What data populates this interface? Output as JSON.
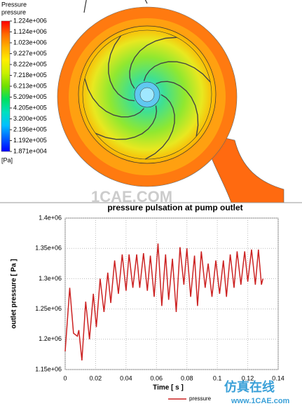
{
  "chart_data": [
    {
      "type": "contour",
      "title": "Pressure",
      "subtitle": "pressure",
      "unit": "[Pa]",
      "ylim": [
        18710,
        1224000
      ],
      "yticks": [
        {
          "value": 1224000,
          "label": "1.224e+006"
        },
        {
          "value": 1124000,
          "label": "1.124e+006"
        },
        {
          "value": 1023000,
          "label": "1.023e+006"
        },
        {
          "value": 922700,
          "label": "9.227e+005"
        },
        {
          "value": 822200,
          "label": "8.222e+005"
        },
        {
          "value": 721800,
          "label": "7.218e+005"
        },
        {
          "value": 621300,
          "label": "6.213e+005"
        },
        {
          "value": 520900,
          "label": "5.209e+005"
        },
        {
          "value": 420500,
          "label": "4.205e+005"
        },
        {
          "value": 320000,
          "label": "3.200e+005"
        },
        {
          "value": 219600,
          "label": "2.196e+005"
        },
        {
          "value": 119200,
          "label": "1.192e+005"
        },
        {
          "value": 18710,
          "label": "1.871e+004"
        }
      ],
      "colors": [
        "#ff0000",
        "#ff6a00",
        "#ffb300",
        "#ffee00",
        "#c8f000",
        "#6fe000",
        "#00e060",
        "#00e0c0",
        "#00c0ff",
        "#0060ff",
        "#0000ff"
      ],
      "watermark": "1CAE.COM"
    },
    {
      "type": "line",
      "title": "pressure pulsation at pump outlet",
      "xlabel": "Time [ s ]",
      "ylabel": "outlet pressure [ Pa ]",
      "xlim": [
        0,
        0.14
      ],
      "xticks": [
        0,
        0.02,
        0.04,
        0.06,
        0.08,
        0.1,
        0.12,
        0.14
      ],
      "ylim": [
        1150000,
        1400000
      ],
      "yticks": [
        {
          "value": 1150000,
          "label": "1.15e+06"
        },
        {
          "value": 1200000,
          "label": "1.2e+06"
        },
        {
          "value": 1250000,
          "label": "1.25e+06"
        },
        {
          "value": 1300000,
          "label": "1.3e+06"
        },
        {
          "value": 1350000,
          "label": "1.35e+06"
        },
        {
          "value": 1400000,
          "label": "1.4e+06"
        }
      ],
      "grid": true,
      "x": [
        0,
        0.003,
        0.0055,
        0.008,
        0.009,
        0.011,
        0.0135,
        0.016,
        0.0185,
        0.0205,
        0.023,
        0.0255,
        0.028,
        0.03,
        0.0325,
        0.035,
        0.0375,
        0.04,
        0.042,
        0.0445,
        0.047,
        0.049,
        0.0515,
        0.054,
        0.056,
        0.0585,
        0.061,
        0.0635,
        0.066,
        0.068,
        0.0705,
        0.073,
        0.0755,
        0.078,
        0.08,
        0.0825,
        0.085,
        0.087,
        0.0895,
        0.092,
        0.094,
        0.0965,
        0.099,
        0.1015,
        0.104,
        0.106,
        0.1085,
        0.111,
        0.113,
        0.1155,
        0.118,
        0.12,
        0.1225,
        0.125,
        0.127,
        0.129,
        0.13
      ],
      "series": [
        {
          "name": "pressure",
          "color": "#cc2222",
          "values": [
            1180000,
            1285000,
            1210000,
            1205000,
            1215000,
            1165000,
            1262000,
            1200000,
            1275000,
            1220000,
            1300000,
            1245000,
            1310000,
            1260000,
            1330000,
            1275000,
            1340000,
            1280000,
            1340000,
            1285000,
            1340000,
            1285000,
            1342000,
            1280000,
            1338000,
            1270000,
            1358000,
            1255000,
            1340000,
            1265000,
            1333000,
            1245000,
            1352000,
            1290000,
            1350000,
            1270000,
            1338000,
            1255000,
            1345000,
            1285000,
            1325000,
            1270000,
            1330000,
            1275000,
            1330000,
            1270000,
            1340000,
            1285000,
            1345000,
            1290000,
            1345000,
            1295000,
            1348000,
            1290000,
            1348000,
            1290000,
            1300000
          ]
        }
      ],
      "legend": "bottom",
      "watermark": "仿真在线",
      "watermark_url": "www.1CAE.com"
    }
  ]
}
